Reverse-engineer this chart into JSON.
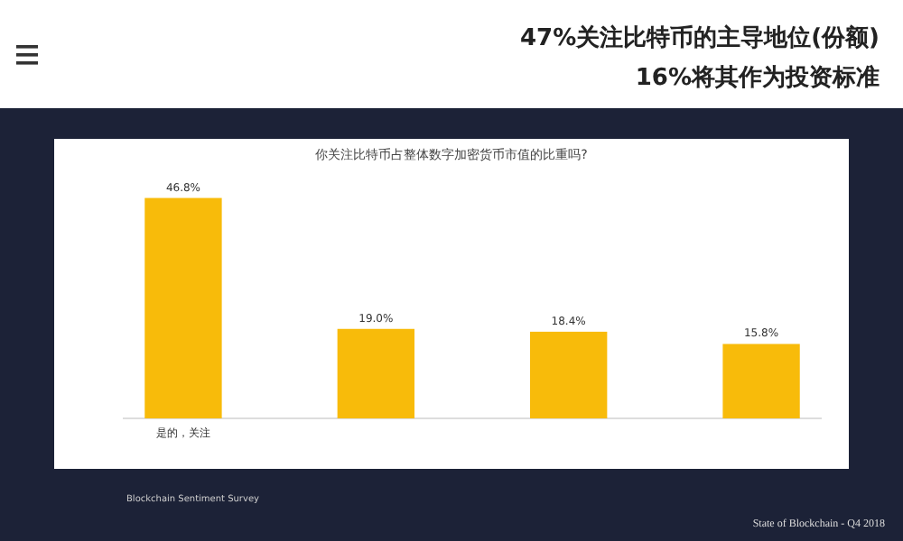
{
  "chart_data": {
    "type": "bar",
    "title": "47%关注比特币的主导地位(份额)",
    "subtitle": "16%将其作为投资标准",
    "xlabel": "你关注比特币占整体数字加密货币市值的比重吗?",
    "categories": [
      "是的，关注",
      null,
      null,
      null
    ],
    "values": [
      46.8,
      19.0,
      18.4,
      15.8
    ],
    "value_labels": [
      "46.8%",
      "19.0%",
      "18.4%",
      "15.8%"
    ],
    "color": "#f8bb0a",
    "annotations": [
      "Blockchain Sentiment Survey",
      "State of Blockchain - Q4 2018"
    ]
  }
}
